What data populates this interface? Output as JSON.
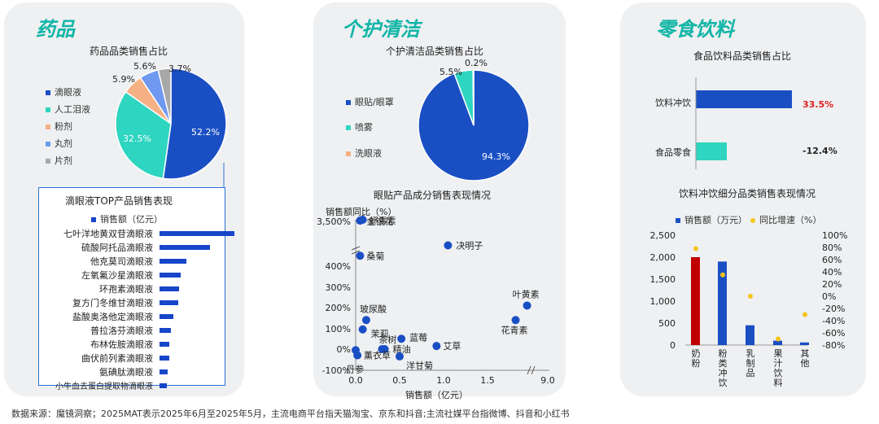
{
  "footer": "数据来源：魔镜洞察；2025MAT表示2025年6月至2025年5月，主流电商平台指天猫淘宝、京东和抖音;主流社媒平台指微博、抖音和小红书",
  "colors": {
    "dark_blue": "#1a4fc4",
    "teal": "#2ed5c0",
    "orange": "#f5b084",
    "light_blue": "#6f98f0",
    "gray": "#a8a8a8",
    "red": "#c00000",
    "yellow": "#f5c518",
    "title": "#12b5a6"
  },
  "panels": {
    "medicine": {
      "title": "药品",
      "pie": {
        "title": "药品品类销售占比",
        "legend": [
          "滴眼液",
          "人工泪液",
          "粉剂",
          "丸剂",
          "片剂"
        ],
        "labels": [
          "52.2%",
          "32.5%",
          "5.9%",
          "5.6%",
          "3.7%"
        ]
      },
      "top": {
        "title": "滴眼液TOP产品销售表现",
        "legend": "销售额（亿元）",
        "products": [
          "七叶洋地黄双苷滴眼液",
          "硫酸阿托品滴眼液",
          "他克莫司滴眼液",
          "左氧氟沙星滴眼液",
          "环孢素滴眼液",
          "复方门冬维甘滴眼液",
          "盐酸奥洛他定滴眼液",
          "普拉洛芬滴眼液",
          "布林佐胺滴眼液",
          "曲伏前列素滴眼液",
          "氨碘肽滴眼液",
          "小牛血去蛋白提取物滴眼液"
        ]
      }
    },
    "personal_care": {
      "title": "个护清洁",
      "pie": {
        "title": "个护清洁品类销售占比",
        "legend": [
          "眼贴/眼罩",
          "喷雾",
          "洗眼液"
        ],
        "labels": [
          "94.3%",
          "5.5%",
          "0.2%"
        ]
      },
      "scatter": {
        "title": "眼贴产品成分销售表现情况",
        "ylabel": "销售额同比（%）",
        "xlabel": "销售额（亿元）",
        "yticks": [
          "3,500%",
          "400%",
          "300%",
          "200%",
          "100%",
          "0%",
          "-100%"
        ],
        "xticks": [
          "0.0",
          "0.5",
          "1.0",
          "1.5",
          "9.0"
        ]
      }
    },
    "snacks": {
      "title": "零食饮料",
      "bar": {
        "title": "食品饮料品类销售占比",
        "categories": [
          "饮料冲饮",
          "食品零食"
        ],
        "labels": [
          "33.5%",
          "-12.4%"
        ]
      },
      "combo": {
        "title": "饮料冲饮细分品类销售表现情况",
        "legend": [
          "销售额（万元）",
          "同比增速（%）"
        ],
        "left_ticks": [
          "2,500",
          "2,000",
          "1,500",
          "1,000",
          "500",
          "0"
        ],
        "right_ticks": [
          "100%",
          "80%",
          "60%",
          "40%",
          "20%",
          "0%",
          "-20%",
          "-40%",
          "-60%",
          "-80%"
        ]
      }
    }
  },
  "chart_data": [
    {
      "type": "pie",
      "title": "药品品类销售占比",
      "categories": [
        "滴眼液",
        "人工泪液",
        "粉剂",
        "丸剂",
        "片剂"
      ],
      "values": [
        52.2,
        32.5,
        5.9,
        5.6,
        3.7
      ]
    },
    {
      "type": "bar",
      "title": "滴眼液TOP产品销售表现",
      "orientation": "horizontal",
      "categories": [
        "七叶洋地黄双苷滴眼液",
        "硫酸阿托品滴眼液",
        "他克莫司滴眼液",
        "左氧氟沙星滴眼液",
        "环孢素滴眼液",
        "复方门冬维甘滴眼液",
        "盐酸奥洛他定滴眼液",
        "普拉洛芬滴眼液",
        "布林佐胺滴眼液",
        "曲伏前列素滴眼液",
        "氨碘肽滴眼液",
        "小牛血去蛋白提取物滴眼液"
      ],
      "series": [
        {
          "name": "销售额（亿元）",
          "values": [
            5.3,
            3.6,
            1.9,
            1.5,
            1.4,
            1.3,
            1.0,
            0.8,
            0.7,
            0.7,
            0.6,
            0.5
          ]
        }
      ]
    },
    {
      "type": "pie",
      "title": "个护清洁品类销售占比",
      "categories": [
        "眼贴/眼罩",
        "喷雾",
        "洗眼液"
      ],
      "values": [
        94.3,
        5.5,
        0.2
      ]
    },
    {
      "type": "scatter",
      "title": "眼贴产品成分销售表现情况",
      "xlabel": "销售额（亿元）",
      "ylabel": "销售额同比（%）",
      "points": [
        {
          "label": "虾青素",
          "x": 0.08,
          "y": 3500
        },
        {
          "label": "金银花",
          "x": 0.05,
          "y": 3300
        },
        {
          "label": "桑菊",
          "x": 0.05,
          "y": 450
        },
        {
          "label": "决明子",
          "x": 1.05,
          "y": 500
        },
        {
          "label": "叶黄素",
          "x": 1.95,
          "y": 210
        },
        {
          "label": "花青素",
          "x": 1.82,
          "y": 140
        },
        {
          "label": "玻尿酸",
          "x": 0.12,
          "y": 140
        },
        {
          "label": "茉莉",
          "x": 0.08,
          "y": 95
        },
        {
          "label": "蓝莓",
          "x": 0.52,
          "y": 50
        },
        {
          "label": "艾草",
          "x": 0.92,
          "y": 15
        },
        {
          "label": "茶树",
          "x": 0.3,
          "y": 0
        },
        {
          "label": "精油",
          "x": 0.33,
          "y": 0
        },
        {
          "label": "薰衣草",
          "x": 0.0,
          "y": -5
        },
        {
          "label": "丹参",
          "x": 0.02,
          "y": -30
        },
        {
          "label": "洋甘菊",
          "x": 0.5,
          "y": -35
        }
      ]
    },
    {
      "type": "bar",
      "title": "食品饮料品类销售占比",
      "orientation": "horizontal",
      "categories": [
        "饮料冲饮",
        "食品零食"
      ],
      "values": [
        33.5,
        -12.4
      ]
    },
    {
      "type": "bar",
      "title": "饮料冲饮细分品类销售表现情况",
      "categories": [
        "奶粉",
        "粉类冲饮",
        "乳制品",
        "果汁饮料",
        "其他"
      ],
      "series": [
        {
          "name": "销售额（万元）",
          "values": [
            2000,
            1900,
            450,
            100,
            60
          ]
        },
        {
          "name": "同比增速（%）",
          "values": [
            78,
            35,
            0,
            -70,
            -30
          ]
        }
      ],
      "ylim": [
        0,
        2500
      ],
      "y2lim": [
        -80,
        100
      ]
    }
  ]
}
